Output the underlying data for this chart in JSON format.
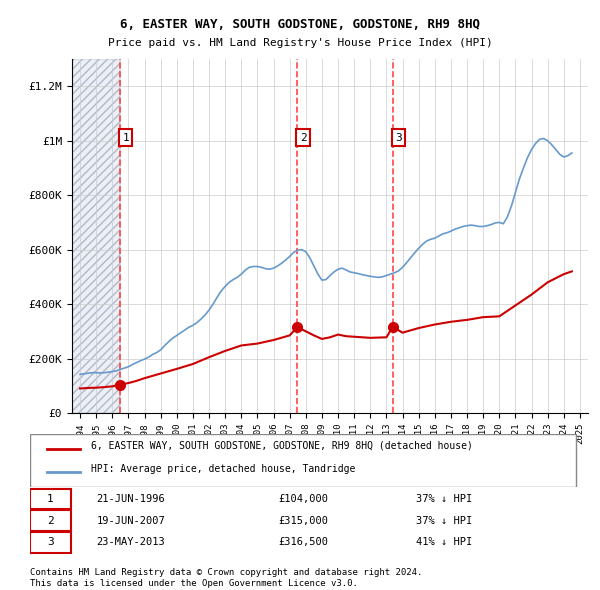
{
  "title": "6, EASTER WAY, SOUTH GODSTONE, GODSTONE, RH9 8HQ",
  "subtitle": "Price paid vs. HM Land Registry's House Price Index (HPI)",
  "hpi_label": "HPI: Average price, detached house, Tandridge",
  "property_label": "6, EASTER WAY, SOUTH GODSTONE, GODSTONE, RH9 8HQ (detached house)",
  "hpi_color": "#6699cc",
  "property_color": "#cc0000",
  "dashed_color": "#ff4444",
  "annotation_box_color": "#cc0000",
  "background_hatched_color": "#d0d8e8",
  "transactions": [
    {
      "num": 1,
      "date": "21-JUN-1996",
      "x": 1996.47,
      "price": 104000,
      "label": "37% ↓ HPI"
    },
    {
      "num": 2,
      "date": "19-JUN-2007",
      "x": 2007.47,
      "price": 315000,
      "label": "37% ↓ HPI"
    },
    {
      "num": 3,
      "date": "23-MAY-2013",
      "x": 2013.39,
      "price": 316500,
      "label": "41% ↓ HPI"
    }
  ],
  "ylim": [
    0,
    1300000
  ],
  "yticks": [
    0,
    200000,
    400000,
    600000,
    800000,
    1000000,
    1200000
  ],
  "ytick_labels": [
    "£0",
    "£200K",
    "£400K",
    "£600K",
    "£800K",
    "£1M",
    "£1.2M"
  ],
  "xlim": [
    1993.5,
    2025.5
  ],
  "footer_line1": "Contains HM Land Registry data © Crown copyright and database right 2024.",
  "footer_line2": "This data is licensed under the Open Government Licence v3.0.",
  "hpi_data_x": [
    1994.0,
    1994.25,
    1994.5,
    1994.75,
    1995.0,
    1995.25,
    1995.5,
    1995.75,
    1996.0,
    1996.25,
    1996.5,
    1996.75,
    1997.0,
    1997.25,
    1997.5,
    1997.75,
    1998.0,
    1998.25,
    1998.5,
    1998.75,
    1999.0,
    1999.25,
    1999.5,
    1999.75,
    2000.0,
    2000.25,
    2000.5,
    2000.75,
    2001.0,
    2001.25,
    2001.5,
    2001.75,
    2002.0,
    2002.25,
    2002.5,
    2002.75,
    2003.0,
    2003.25,
    2003.5,
    2003.75,
    2004.0,
    2004.25,
    2004.5,
    2004.75,
    2005.0,
    2005.25,
    2005.5,
    2005.75,
    2006.0,
    2006.25,
    2006.5,
    2006.75,
    2007.0,
    2007.25,
    2007.5,
    2007.75,
    2008.0,
    2008.25,
    2008.5,
    2008.75,
    2009.0,
    2009.25,
    2009.5,
    2009.75,
    2010.0,
    2010.25,
    2010.5,
    2010.75,
    2011.0,
    2011.25,
    2011.5,
    2011.75,
    2012.0,
    2012.25,
    2012.5,
    2012.75,
    2013.0,
    2013.25,
    2013.5,
    2013.75,
    2014.0,
    2014.25,
    2014.5,
    2014.75,
    2015.0,
    2015.25,
    2015.5,
    2015.75,
    2016.0,
    2016.25,
    2016.5,
    2016.75,
    2017.0,
    2017.25,
    2017.5,
    2017.75,
    2018.0,
    2018.25,
    2018.5,
    2018.75,
    2019.0,
    2019.25,
    2019.5,
    2019.75,
    2020.0,
    2020.25,
    2020.5,
    2020.75,
    2021.0,
    2021.25,
    2021.5,
    2021.75,
    2022.0,
    2022.25,
    2022.5,
    2022.75,
    2023.0,
    2023.25,
    2023.5,
    2023.75,
    2024.0,
    2024.25,
    2024.5
  ],
  "hpi_data_y": [
    142000,
    144000,
    146000,
    148000,
    148000,
    147000,
    148000,
    150000,
    152000,
    155000,
    160000,
    165000,
    170000,
    178000,
    185000,
    192000,
    198000,
    205000,
    215000,
    222000,
    232000,
    248000,
    262000,
    275000,
    285000,
    295000,
    305000,
    315000,
    322000,
    332000,
    345000,
    360000,
    378000,
    400000,
    425000,
    448000,
    465000,
    480000,
    490000,
    498000,
    510000,
    525000,
    535000,
    538000,
    538000,
    535000,
    530000,
    528000,
    532000,
    540000,
    550000,
    562000,
    575000,
    590000,
    598000,
    600000,
    592000,
    570000,
    540000,
    510000,
    488000,
    490000,
    505000,
    518000,
    528000,
    532000,
    525000,
    518000,
    515000,
    512000,
    508000,
    505000,
    502000,
    500000,
    498000,
    500000,
    505000,
    510000,
    515000,
    522000,
    535000,
    552000,
    570000,
    588000,
    605000,
    620000,
    632000,
    638000,
    642000,
    650000,
    658000,
    662000,
    668000,
    675000,
    680000,
    685000,
    688000,
    690000,
    688000,
    685000,
    685000,
    688000,
    692000,
    698000,
    700000,
    695000,
    720000,
    760000,
    810000,
    860000,
    900000,
    938000,
    968000,
    990000,
    1005000,
    1008000,
    1000000,
    985000,
    968000,
    950000,
    940000,
    945000,
    955000
  ],
  "property_data_x": [
    1994.0,
    1994.5,
    1995.0,
    1995.5,
    1996.0,
    1996.47,
    1997.0,
    1997.5,
    1998.0,
    1999.0,
    2000.0,
    2001.0,
    2002.0,
    2003.0,
    2004.0,
    2005.0,
    2006.0,
    2007.0,
    2007.47,
    2008.0,
    2008.5,
    2009.0,
    2009.5,
    2010.0,
    2010.5,
    2011.0,
    2011.5,
    2012.0,
    2013.0,
    2013.39,
    2014.0,
    2015.0,
    2016.0,
    2017.0,
    2018.0,
    2019.0,
    2020.0,
    2021.0,
    2022.0,
    2023.0,
    2024.0,
    2024.5
  ],
  "property_data_y": [
    90000,
    92000,
    93000,
    95000,
    98000,
    104000,
    110000,
    118000,
    128000,
    145000,
    162000,
    180000,
    205000,
    228000,
    248000,
    255000,
    268000,
    285000,
    315000,
    300000,
    285000,
    272000,
    278000,
    288000,
    282000,
    280000,
    278000,
    276000,
    278000,
    316500,
    295000,
    312000,
    325000,
    335000,
    342000,
    352000,
    355000,
    395000,
    435000,
    480000,
    510000,
    520000
  ]
}
